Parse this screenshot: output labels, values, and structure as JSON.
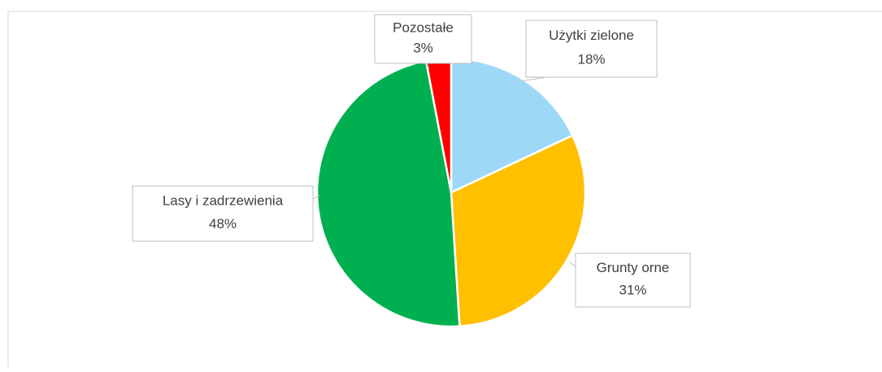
{
  "chart_data": {
    "type": "pie",
    "categories": [
      "Użytki zielone",
      "Grunty orne",
      "Lasy i zadrzewienia",
      "Pozostałe"
    ],
    "values": [
      18,
      31,
      48,
      3
    ],
    "value_labels": [
      "18%",
      "31%",
      "48%",
      "3%"
    ],
    "colors": [
      "#9dd9f7",
      "#ffc000",
      "#00b050",
      "#ff0000"
    ]
  }
}
